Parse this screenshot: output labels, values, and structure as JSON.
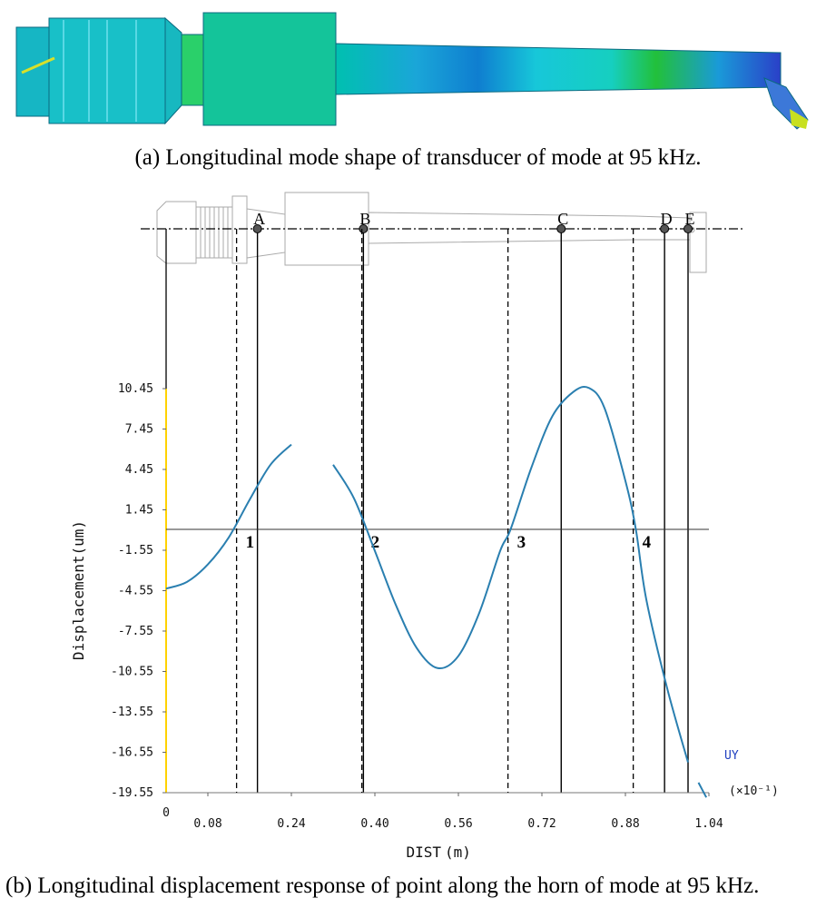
{
  "captions": {
    "a": "(a) Longitudinal mode shape of transducer of mode at 95 kHz.",
    "b": "(b) Longitudinal displacement response of point along the horn of mode at 95 kHz."
  },
  "chart_data": {
    "type": "line",
    "xlabel_main": "DIST",
    "xlabel_unit": "(m)",
    "ylabel": "Displacement(um)",
    "x_origin_label": "0",
    "x_ticks": [
      0.08,
      0.24,
      0.4,
      0.56,
      0.72,
      0.88,
      1.04
    ],
    "x_tick_labels": [
      "0.08",
      "0.24",
      "0.40",
      "0.56",
      "0.72",
      "0.88",
      "1.04"
    ],
    "y_ticks": [
      10.45,
      7.45,
      4.45,
      1.45,
      -1.55,
      -4.55,
      -7.55,
      -10.55,
      -13.55,
      -16.55,
      -19.55
    ],
    "y_tick_labels": [
      "10.45",
      "7.45",
      "4.45",
      "1.45",
      "-1.55",
      "-4.55",
      "-7.55",
      "-10.55",
      "-13.55",
      "-16.55",
      "-19.55"
    ],
    "xlim": [
      0,
      1.04
    ],
    "ylim": [
      -19.55,
      10.45
    ],
    "zero_line": 0,
    "series": [
      {
        "name": "UY",
        "multiplier": "(×10⁻¹)",
        "color": "#2a7fb0",
        "segments": [
          [
            [
              0,
              -4.4
            ],
            [
              0.04,
              -3.9
            ],
            [
              0.08,
              -2.6
            ],
            [
              0.12,
              -0.6
            ],
            [
              0.16,
              2.2
            ],
            [
              0.2,
              4.8
            ],
            [
              0.24,
              6.3
            ]
          ],
          [
            [
              0.32,
              4.8
            ],
            [
              0.36,
              2.3
            ],
            [
              0.4,
              -1.6
            ],
            [
              0.44,
              -5.6
            ],
            [
              0.48,
              -8.8
            ],
            [
              0.52,
              -10.3
            ],
            [
              0.56,
              -9.4
            ],
            [
              0.6,
              -6.2
            ],
            [
              0.64,
              -1.6
            ],
            [
              0.66,
              0
            ],
            [
              0.7,
              4.6
            ],
            [
              0.74,
              8.4
            ],
            [
              0.78,
              10.2
            ],
            [
              0.81,
              10.5
            ],
            [
              0.84,
              9.0
            ],
            [
              0.88,
              3.6
            ],
            [
              0.9,
              0
            ],
            [
              0.92,
              -5.2
            ],
            [
              0.96,
              -11.8
            ],
            [
              1.0,
              -17.3
            ]
          ],
          [
            [
              1.02,
              -18.8
            ],
            [
              1.035,
              -19.9
            ]
          ]
        ]
      }
    ],
    "node_markers": [
      {
        "label": "1",
        "x": 0.135
      },
      {
        "label": "2",
        "x": 0.375
      },
      {
        "label": "3",
        "x": 0.655
      },
      {
        "label": "4",
        "x": 0.895
      }
    ],
    "points": [
      {
        "label": "A",
        "x": 0.175
      },
      {
        "label": "B",
        "x": 0.378
      },
      {
        "label": "C",
        "x": 0.757
      },
      {
        "label": "D",
        "x": 0.955
      },
      {
        "label": "E",
        "x": 1.0
      }
    ]
  }
}
